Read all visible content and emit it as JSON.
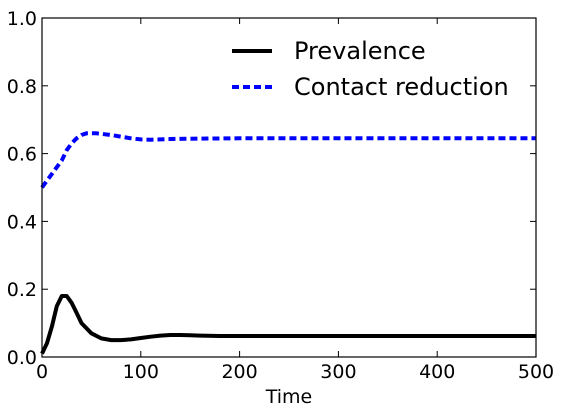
{
  "chart_data": {
    "type": "line",
    "title": "",
    "xlabel": "Time",
    "ylabel": "",
    "xlim": [
      0,
      500
    ],
    "ylim": [
      0.0,
      1.0
    ],
    "xticks": [
      "0",
      "100",
      "200",
      "300",
      "400",
      "500"
    ],
    "yticks": [
      "0.0",
      "0.2",
      "0.4",
      "0.6",
      "0.8",
      "1.0"
    ],
    "grid": false,
    "legend_position": "top-right",
    "series": [
      {
        "name": "Prevalence",
        "color": "#000000",
        "style": "solid",
        "x": [
          0,
          5,
          10,
          15,
          20,
          25,
          30,
          35,
          40,
          50,
          60,
          70,
          80,
          90,
          100,
          110,
          120,
          130,
          140,
          150,
          160,
          180,
          200,
          250,
          300,
          350,
          400,
          450,
          500
        ],
        "y": [
          0.01,
          0.04,
          0.09,
          0.15,
          0.18,
          0.18,
          0.16,
          0.13,
          0.1,
          0.07,
          0.055,
          0.05,
          0.05,
          0.052,
          0.056,
          0.06,
          0.063,
          0.065,
          0.065,
          0.064,
          0.063,
          0.062,
          0.062,
          0.062,
          0.062,
          0.062,
          0.062,
          0.062,
          0.062
        ]
      },
      {
        "name": "Contact reduction",
        "color": "#0000ff",
        "style": "dashed",
        "x": [
          0,
          5,
          10,
          15,
          20,
          25,
          30,
          35,
          40,
          45,
          50,
          55,
          60,
          70,
          80,
          90,
          100,
          110,
          120,
          130,
          150,
          200,
          250,
          300,
          350,
          400,
          450,
          500
        ],
        "y": [
          0.5,
          0.52,
          0.54,
          0.56,
          0.58,
          0.61,
          0.63,
          0.645,
          0.655,
          0.66,
          0.66,
          0.66,
          0.658,
          0.655,
          0.65,
          0.645,
          0.642,
          0.641,
          0.642,
          0.643,
          0.644,
          0.645,
          0.645,
          0.645,
          0.645,
          0.645,
          0.645,
          0.645
        ]
      }
    ]
  }
}
